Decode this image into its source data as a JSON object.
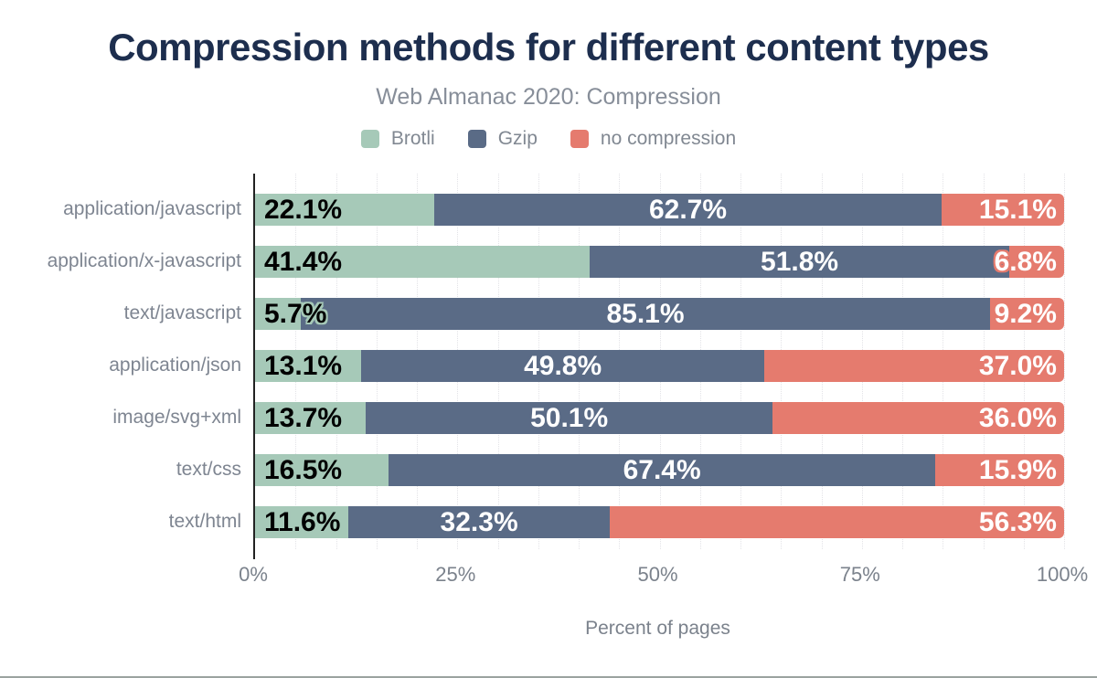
{
  "chart_data": {
    "type": "bar",
    "orientation": "horizontal",
    "stacked": true,
    "title": "Compression methods for different content types",
    "subtitle": "Web Almanac 2020: Compression",
    "xlabel": "Percent of pages",
    "xlim": [
      0,
      100
    ],
    "x_ticks": [
      "0%",
      "25%",
      "50%",
      "75%",
      "100%"
    ],
    "x_tick_positions": [
      0,
      25,
      50,
      75,
      100
    ],
    "gridlines": "dotted vertical every 5%",
    "legend_position": "top",
    "categories": [
      "application/javascript",
      "application/x-javascript",
      "text/javascript",
      "application/json",
      "image/svg+xml",
      "text/css",
      "text/html"
    ],
    "series": [
      {
        "name": "Brotli",
        "color": "#a6c9b8",
        "label_color": "#000000",
        "label_align": "start",
        "values": [
          22.1,
          41.4,
          5.7,
          13.1,
          13.7,
          16.5,
          11.6
        ]
      },
      {
        "name": "Gzip",
        "color": "#5a6b86",
        "label_color": "#ffffff",
        "label_align": "center",
        "values": [
          62.7,
          51.8,
          85.1,
          49.8,
          50.1,
          67.4,
          32.3
        ]
      },
      {
        "name": "no compression",
        "color": "#e57b6e",
        "label_color": "#ffffff",
        "label_align": "end",
        "values": [
          15.1,
          6.8,
          9.2,
          37.0,
          36.0,
          15.9,
          56.3
        ]
      }
    ],
    "value_label_format": "one decimal + %"
  },
  "style": {
    "title_color": "#1d2e4e",
    "subtitle_color": "#878e99",
    "axis_text_color": "#7b828c",
    "axis_line_color": "#222222",
    "gridline_color": "#e3e3e7",
    "bottom_border_color": "#9ba3a0"
  }
}
